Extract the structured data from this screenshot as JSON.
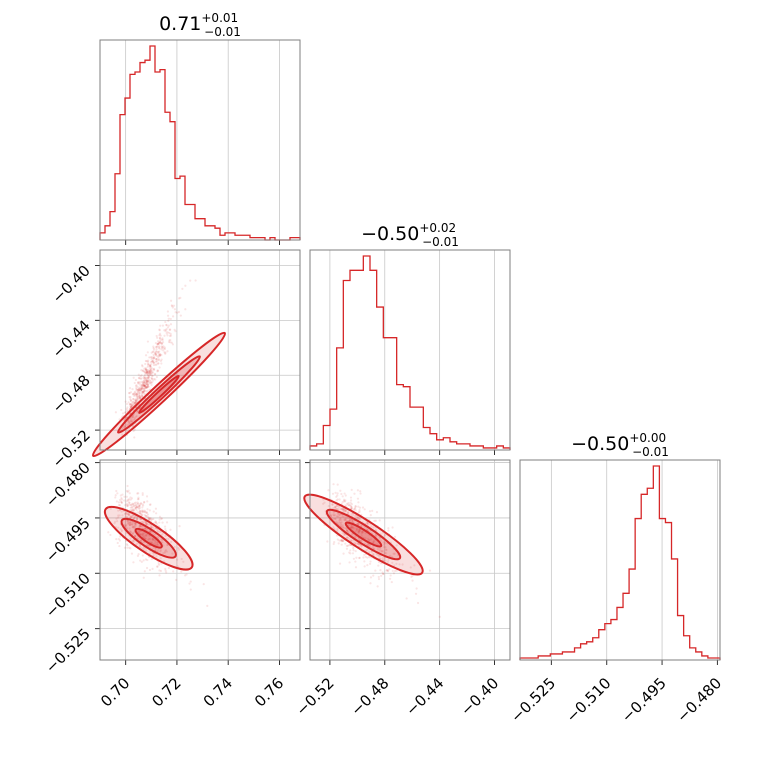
{
  "accent_color": "#d62728",
  "chart_data": {
    "type": "corner",
    "grid": true,
    "parameters": [
      {
        "title": {
          "value": "0.71",
          "upper": "+0.01",
          "lower": "−0.01"
        }
      },
      {
        "title": {
          "value": "−0.50",
          "upper": "+0.02",
          "lower": "−0.01"
        }
      },
      {
        "title": {
          "value": "−0.50",
          "upper": "+0.00",
          "lower": "−0.01"
        }
      }
    ],
    "histograms": [
      {
        "param": 0,
        "range": [
          0.69,
          0.768
        ],
        "ticks": [
          {
            "v": 0.7,
            "label": "0.70"
          },
          {
            "v": 0.72,
            "label": "0.72"
          },
          {
            "v": 0.74,
            "label": "0.74"
          },
          {
            "v": 0.76,
            "label": "0.76"
          }
        ],
        "counts": [
          3,
          6,
          12,
          28,
          53,
          60,
          70,
          71,
          75,
          76,
          82,
          71,
          72,
          54,
          50,
          26,
          27,
          15,
          15,
          9,
          9,
          6,
          6,
          5,
          2,
          3,
          3,
          2,
          2,
          2,
          1,
          1,
          1,
          0,
          1,
          0,
          0,
          0,
          1,
          1
        ]
      },
      {
        "param": 1,
        "range": [
          -0.5345,
          -0.3887
        ],
        "ticks": [
          {
            "v": -0.52,
            "label": "−0.52"
          },
          {
            "v": -0.48,
            "label": "−0.48"
          },
          {
            "v": -0.44,
            "label": "−0.44"
          },
          {
            "v": -0.4,
            "label": "−0.40"
          }
        ],
        "counts": [
          2,
          3,
          12,
          20,
          50,
          83,
          88,
          88,
          95,
          88,
          70,
          55,
          55,
          32,
          31,
          21,
          21,
          11,
          8,
          5,
          6,
          4,
          3,
          3,
          2,
          2,
          1,
          1,
          2,
          1
        ]
      },
      {
        "param": 2,
        "range": [
          -0.5335,
          -0.4793
        ],
        "ticks": [
          {
            "v": -0.525,
            "label": "−0.525"
          },
          {
            "v": -0.51,
            "label": "−0.510"
          },
          {
            "v": -0.495,
            "label": "−0.495"
          },
          {
            "v": -0.48,
            "label": "−0.480"
          }
        ],
        "counts": [
          1,
          1,
          1,
          2,
          2,
          3,
          3,
          4,
          4,
          6,
          8,
          9,
          11,
          15,
          18,
          20,
          26,
          33,
          45,
          70,
          82,
          85,
          96,
          70,
          68,
          50,
          22,
          12,
          6,
          4,
          2,
          1,
          1
        ]
      }
    ],
    "scatter_panels": [
      {
        "x_param": 0,
        "y_param": 1,
        "ylim": [
          -0.5345,
          -0.3887
        ],
        "yticks": [
          {
            "v": -0.52,
            "label": "−0.52"
          },
          {
            "v": -0.48,
            "label": "−0.48"
          },
          {
            "v": -0.44,
            "label": "−0.44"
          },
          {
            "v": -0.4,
            "label": "−0.40"
          }
        ]
      },
      {
        "x_param": 0,
        "y_param": 2,
        "ylim": [
          -0.5335,
          -0.4793
        ],
        "yticks": [
          {
            "v": -0.525,
            "label": "−0.525"
          },
          {
            "v": -0.51,
            "label": "−0.510"
          },
          {
            "v": -0.495,
            "label": "−0.495"
          },
          {
            "v": -0.48,
            "label": "−0.480"
          }
        ]
      },
      {
        "x_param": 1,
        "y_param": 2,
        "ylim": [
          -0.5335,
          -0.4793
        ],
        "yticks": []
      }
    ]
  }
}
